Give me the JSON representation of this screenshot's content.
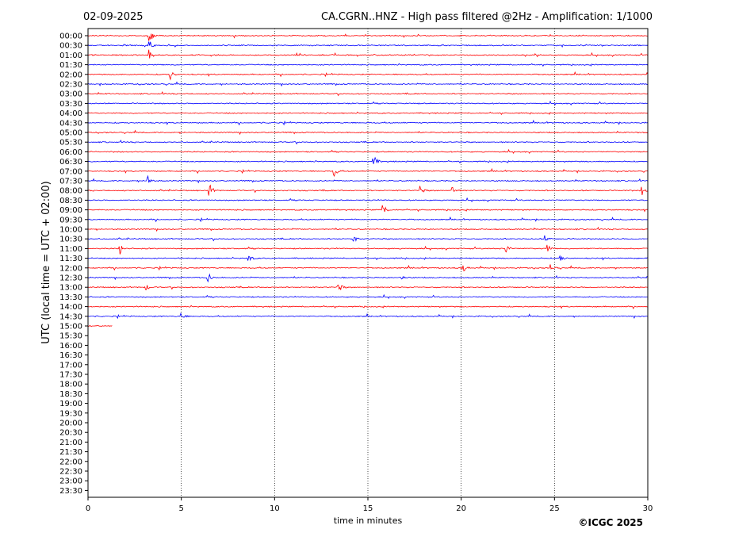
{
  "header": {
    "date": "02-09-2025",
    "title": "CA.CGRN..HNZ - High pass filtered @2Hz - Amplification: 1/1000"
  },
  "footer": {
    "copyright": "©ICGC 2025"
  },
  "colors": {
    "even_row": "#ff0000",
    "odd_row": "#0000ff",
    "grid": "#000000",
    "background": "#ffffff"
  },
  "chart_data": {
    "type": "line",
    "title": "CA.CGRN..HNZ - High pass filtered @2Hz - Amplification: 1/1000",
    "xlabel": "time in minutes",
    "ylabel": "UTC (local time = UTC + 02:00)",
    "xlim": [
      0,
      30
    ],
    "x_ticks": [
      "0",
      "5",
      "10",
      "15",
      "20",
      "25",
      "30"
    ],
    "vertical_gridlines_at": [
      5,
      10,
      15,
      20,
      25
    ],
    "row_labels": [
      "00:00",
      "00:30",
      "01:00",
      "01:30",
      "02:00",
      "02:30",
      "03:00",
      "03:30",
      "04:00",
      "04:30",
      "05:00",
      "05:30",
      "06:00",
      "06:30",
      "07:00",
      "07:30",
      "08:00",
      "08:30",
      "09:00",
      "09:30",
      "10:00",
      "10:30",
      "11:00",
      "11:30",
      "12:00",
      "12:30",
      "13:00",
      "13:30",
      "14:00",
      "14:30",
      "15:00",
      "15:30",
      "16:00",
      "16:30",
      "17:00",
      "17:30",
      "18:00",
      "18:30",
      "19:00",
      "19:30",
      "20:00",
      "20:30",
      "21:00",
      "21:30",
      "22:00",
      "22:30",
      "23:00",
      "23:30"
    ],
    "data_end": {
      "row": "15:00",
      "minute": 1.3
    },
    "events": [
      {
        "row": "00:00",
        "minute": 3.3,
        "amplitude": 1.0
      },
      {
        "row": "00:30",
        "minute": 3.3,
        "amplitude": 0.6
      },
      {
        "row": "01:00",
        "minute": 3.3,
        "amplitude": 0.6
      },
      {
        "row": "02:00",
        "minute": 4.4,
        "amplitude": 0.7
      },
      {
        "row": "06:30",
        "minute": 15.3,
        "amplitude": 0.9
      },
      {
        "row": "07:00",
        "minute": 13.2,
        "amplitude": 0.6
      },
      {
        "row": "07:30",
        "minute": 3.2,
        "amplitude": 0.7
      },
      {
        "row": "08:00",
        "minute": 6.5,
        "amplitude": 0.9
      },
      {
        "row": "08:00",
        "minute": 17.8,
        "amplitude": 0.6
      },
      {
        "row": "08:00",
        "minute": 19.5,
        "amplitude": 0.8
      },
      {
        "row": "08:00",
        "minute": 29.7,
        "amplitude": 0.5
      },
      {
        "row": "09:00",
        "minute": 15.8,
        "amplitude": 0.7
      },
      {
        "row": "10:30",
        "minute": 14.2,
        "amplitude": 0.5
      },
      {
        "row": "10:30",
        "minute": 24.5,
        "amplitude": 0.4
      },
      {
        "row": "11:00",
        "minute": 1.7,
        "amplitude": 0.7
      },
      {
        "row": "11:00",
        "minute": 22.4,
        "amplitude": 0.6
      },
      {
        "row": "11:00",
        "minute": 24.6,
        "amplitude": 0.6
      },
      {
        "row": "11:30",
        "minute": 8.6,
        "amplitude": 0.5
      },
      {
        "row": "11:30",
        "minute": 25.3,
        "amplitude": 0.5
      },
      {
        "row": "12:00",
        "minute": 20.1,
        "amplitude": 0.6
      },
      {
        "row": "12:00",
        "minute": 24.8,
        "amplitude": 0.5
      },
      {
        "row": "12:30",
        "minute": 6.4,
        "amplitude": 0.8
      },
      {
        "row": "12:30",
        "minute": 16.8,
        "amplitude": 0.4
      },
      {
        "row": "13:00",
        "minute": 3.1,
        "amplitude": 0.5
      },
      {
        "row": "13:00",
        "minute": 13.4,
        "amplitude": 0.9
      },
      {
        "row": "14:30",
        "minute": 5.0,
        "amplitude": 0.6
      }
    ]
  }
}
